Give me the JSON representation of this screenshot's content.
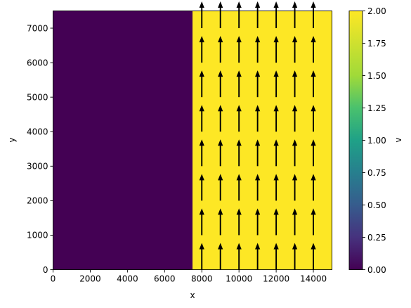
{
  "chart_data": {
    "type": "heatmap",
    "title": "",
    "xlabel": "x",
    "ylabel": "y",
    "xlim": [
      0,
      15000
    ],
    "ylim": [
      0,
      7500
    ],
    "x_ticks": [
      0,
      2000,
      4000,
      6000,
      8000,
      10000,
      12000,
      14000
    ],
    "y_ticks": [
      0,
      1000,
      2000,
      3000,
      4000,
      5000,
      6000,
      7000
    ],
    "regions": [
      {
        "x_range": [
          0,
          7500
        ],
        "y_range": [
          0,
          7500
        ],
        "value": 0,
        "color": "#440154"
      },
      {
        "x_range": [
          7500,
          15000
        ],
        "y_range": [
          0,
          7500
        ],
        "value": 2,
        "color": "#fde725"
      }
    ],
    "quiver": {
      "x": [
        8000,
        9000,
        10000,
        11000,
        12000,
        13000,
        14000
      ],
      "y": [
        0,
        1000,
        2000,
        3000,
        4000,
        5000,
        6000,
        7000
      ],
      "u": 0,
      "v": 2,
      "color": "#000000"
    },
    "colorbar": {
      "label": "v",
      "range": [
        0,
        2
      ],
      "ticks": [
        "0.00",
        "0.25",
        "0.50",
        "0.75",
        "1.00",
        "1.25",
        "1.50",
        "1.75",
        "2.00"
      ],
      "colormap": "viridis"
    }
  }
}
